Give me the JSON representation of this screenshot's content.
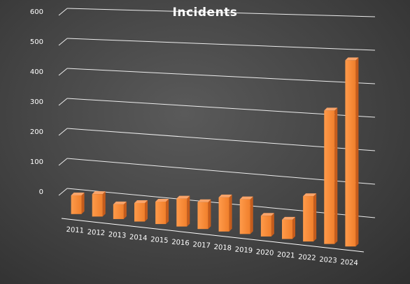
{
  "chart_data": {
    "type": "bar",
    "title": "Incidents",
    "categories": [
      "2011",
      "2012",
      "2013",
      "2014",
      "2015",
      "2016",
      "2017",
      "2018",
      "2019",
      "2020",
      "2021",
      "2022",
      "2023",
      "2024"
    ],
    "values": [
      62,
      74,
      48,
      60,
      72,
      89,
      85,
      107,
      108,
      64,
      59,
      138,
      403,
      558
    ],
    "ylim": [
      0,
      600
    ],
    "yticks": [
      0,
      100,
      200,
      300,
      400,
      500,
      600
    ],
    "grid": true,
    "legend": "none",
    "colors": {
      "bar": "#f07f2b",
      "bar_front_light": "#ff9a4a",
      "bar_side": "#c55c1c",
      "bar_top": "#f9a46a",
      "gridline": "#ffffff",
      "text": "#ffffff"
    }
  }
}
